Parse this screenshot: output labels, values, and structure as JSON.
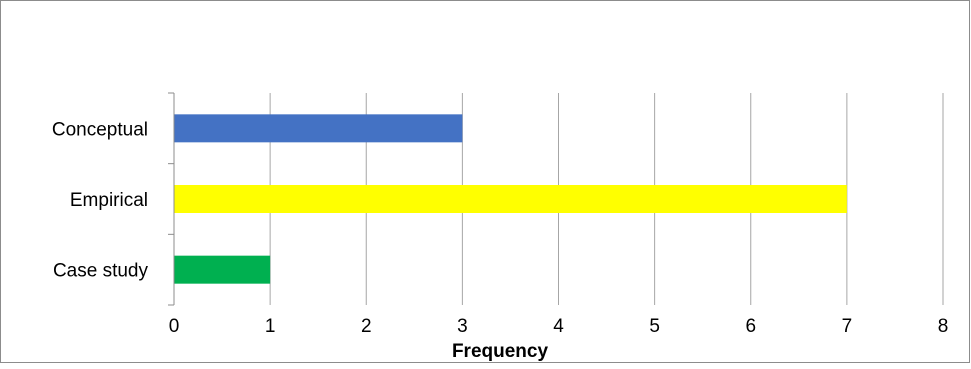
{
  "chart_data": {
    "type": "bar",
    "orientation": "horizontal",
    "categories": [
      "Conceptual",
      "Empirical",
      "Case study"
    ],
    "values": [
      3,
      7,
      1
    ],
    "colors": [
      "#4472C4",
      "#FFFF00",
      "#00B050"
    ],
    "title": "",
    "xlabel": "Frequency",
    "ylabel": "",
    "xlim": [
      0,
      8
    ],
    "x_ticks": [
      "0",
      "1",
      "2",
      "3",
      "4",
      "5",
      "6",
      "7",
      "8"
    ],
    "grid": "vertical",
    "legend": "none"
  }
}
